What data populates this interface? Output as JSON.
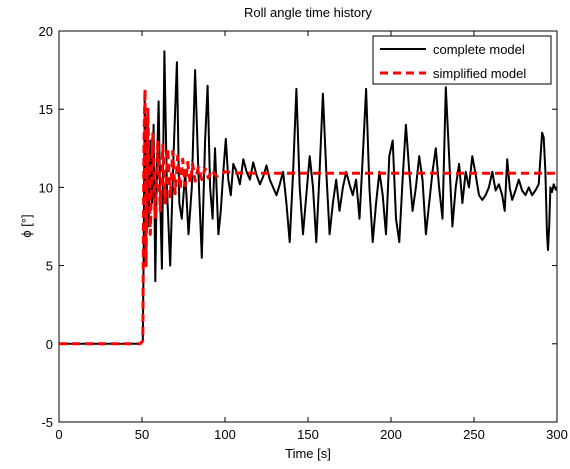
{
  "chart_data": {
    "type": "line",
    "title": "Roll angle time history",
    "xlabel": "Time [s]",
    "ylabel": "ϕ [°]",
    "xlim": [
      0,
      300
    ],
    "ylim": [
      -5,
      20
    ],
    "xticks": [
      "0",
      "50",
      "100",
      "150",
      "200",
      "250",
      "300"
    ],
    "yticks": [
      "-5",
      "0",
      "5",
      "10",
      "15",
      "20"
    ],
    "grid": false,
    "legend_position": "top-right",
    "series": [
      {
        "name": "complete model",
        "color": "#000000",
        "style": "solid",
        "points": [
          [
            0,
            0
          ],
          [
            49,
            0
          ],
          [
            50.5,
            0.2
          ],
          [
            51,
            6
          ],
          [
            51.6,
            15.5
          ],
          [
            52.3,
            9.5
          ],
          [
            53.1,
            14.5
          ],
          [
            54,
            7.5
          ],
          [
            55,
            13
          ],
          [
            56,
            9
          ],
          [
            57,
            14
          ],
          [
            58,
            4
          ],
          [
            59,
            11
          ],
          [
            60,
            15.5
          ],
          [
            61,
            9
          ],
          [
            62,
            4.8
          ],
          [
            63.5,
            18.7
          ],
          [
            65,
            10
          ],
          [
            67,
            5
          ],
          [
            69,
            12
          ],
          [
            71,
            18
          ],
          [
            72.5,
            9
          ],
          [
            74,
            8
          ],
          [
            76,
            11
          ],
          [
            78,
            7
          ],
          [
            80,
            10
          ],
          [
            82,
            17.5
          ],
          [
            84,
            11
          ],
          [
            86,
            5.5
          ],
          [
            88,
            13
          ],
          [
            89.5,
            16.5
          ],
          [
            91,
            10
          ],
          [
            92.5,
            8
          ],
          [
            94,
            12.5
          ],
          [
            96,
            7
          ],
          [
            97.5,
            8.5
          ],
          [
            99,
            11
          ],
          [
            100.5,
            13.1
          ],
          [
            102,
            10.5
          ],
          [
            103.5,
            9.5
          ],
          [
            105,
            11.5
          ],
          [
            107,
            11
          ],
          [
            109,
            10.2
          ],
          [
            111,
            11.8
          ],
          [
            113,
            11
          ],
          [
            115,
            10.5
          ],
          [
            117,
            11.6
          ],
          [
            119,
            10.8
          ],
          [
            121,
            10.2
          ],
          [
            123,
            10.7
          ],
          [
            125,
            11.4
          ],
          [
            127,
            10.5
          ],
          [
            129,
            10
          ],
          [
            131,
            9.5
          ],
          [
            133,
            10.2
          ],
          [
            135,
            11
          ],
          [
            137,
            9
          ],
          [
            139,
            6.5
          ],
          [
            141,
            11
          ],
          [
            143,
            16.3
          ],
          [
            145,
            10
          ],
          [
            147,
            7
          ],
          [
            149,
            9.5
          ],
          [
            151,
            12
          ],
          [
            153,
            10
          ],
          [
            155,
            6.5
          ],
          [
            157,
            11
          ],
          [
            159,
            16
          ],
          [
            161,
            11
          ],
          [
            163,
            7
          ],
          [
            165,
            9
          ],
          [
            167,
            10.5
          ],
          [
            169,
            8.5
          ],
          [
            171,
            10
          ],
          [
            173,
            11
          ],
          [
            175,
            10.2
          ],
          [
            177,
            9.5
          ],
          [
            179,
            10.5
          ],
          [
            181,
            8
          ],
          [
            183,
            12
          ],
          [
            185,
            16.3
          ],
          [
            187,
            10
          ],
          [
            189,
            6.5
          ],
          [
            191,
            9
          ],
          [
            193,
            11
          ],
          [
            195,
            9.5
          ],
          [
            197,
            7
          ],
          [
            199,
            12
          ],
          [
            201,
            13
          ],
          [
            203,
            8
          ],
          [
            205,
            6.5
          ],
          [
            207,
            10.5
          ],
          [
            209,
            14
          ],
          [
            211,
            11
          ],
          [
            213,
            8.5
          ],
          [
            215,
            10
          ],
          [
            217,
            12
          ],
          [
            219,
            10.5
          ],
          [
            221,
            7
          ],
          [
            223,
            9
          ],
          [
            225,
            11
          ],
          [
            227,
            12.5
          ],
          [
            229,
            10
          ],
          [
            231,
            8
          ],
          [
            233,
            16.4
          ],
          [
            235,
            12
          ],
          [
            237,
            7.5
          ],
          [
            239,
            10
          ],
          [
            241,
            11.5
          ],
          [
            243,
            9
          ],
          [
            245,
            11
          ],
          [
            247,
            10
          ],
          [
            249,
            12
          ],
          [
            251,
            10.8
          ],
          [
            253,
            9.5
          ],
          [
            255,
            9.2
          ],
          [
            257,
            9.5
          ],
          [
            259,
            10
          ],
          [
            261,
            11
          ],
          [
            263,
            9.8
          ],
          [
            265,
            10.2
          ],
          [
            267,
            9.5
          ],
          [
            268.5,
            8.5
          ],
          [
            270,
            11.8
          ],
          [
            271.5,
            10
          ],
          [
            273,
            9.2
          ],
          [
            275,
            9.8
          ],
          [
            277,
            10.5
          ],
          [
            279,
            9.8
          ],
          [
            281,
            9.5
          ],
          [
            283,
            10
          ],
          [
            285,
            9.5
          ],
          [
            287,
            9.8
          ],
          [
            289,
            10.2
          ],
          [
            291,
            13.5
          ],
          [
            292,
            13.2
          ],
          [
            293,
            11
          ],
          [
            294,
            7
          ],
          [
            294.6,
            6
          ],
          [
            295.3,
            7.5
          ],
          [
            296,
            10
          ],
          [
            297,
            9.7
          ],
          [
            298,
            10.2
          ],
          [
            299.5,
            9.8
          ]
        ]
      },
      {
        "name": "simplified model",
        "color": "#ff0000",
        "style": "dashed",
        "points": [
          [
            0,
            0
          ],
          [
            49,
            0
          ],
          [
            50.5,
            0.2
          ],
          [
            51.2,
            13
          ],
          [
            51.8,
            16.3
          ],
          [
            52.5,
            5
          ],
          [
            53.5,
            15
          ],
          [
            55,
            7
          ],
          [
            56.5,
            13.5
          ],
          [
            58,
            8
          ],
          [
            59.5,
            13
          ],
          [
            61,
            8.5
          ],
          [
            62.5,
            12.7
          ],
          [
            64,
            9
          ],
          [
            65.5,
            12.5
          ],
          [
            67,
            9.3
          ],
          [
            68.5,
            12.3
          ],
          [
            70,
            9.6
          ],
          [
            71.5,
            12
          ],
          [
            73,
            9.9
          ],
          [
            74.5,
            11.8
          ],
          [
            76,
            10.1
          ],
          [
            77.5,
            11.6
          ],
          [
            79,
            10.3
          ],
          [
            80.5,
            11.5
          ],
          [
            82,
            10.4
          ],
          [
            84,
            11.3
          ],
          [
            86,
            10.5
          ],
          [
            88,
            11.2
          ],
          [
            90,
            10.6
          ],
          [
            92,
            11.1
          ],
          [
            95,
            10.7
          ],
          [
            100,
            11
          ],
          [
            110,
            10.9
          ],
          [
            120,
            10.9
          ],
          [
            150,
            10.9
          ],
          [
            200,
            10.9
          ],
          [
            250,
            10.9
          ],
          [
            300,
            10.9
          ]
        ]
      }
    ]
  }
}
